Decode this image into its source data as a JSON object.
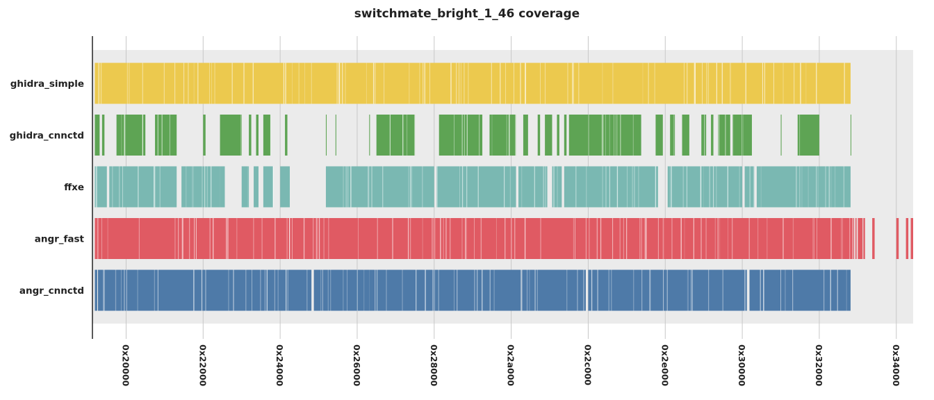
{
  "chart_data": {
    "type": "coverage",
    "title": "switchmate_bright_1_46 coverage",
    "xlabel": "",
    "ylabel": "",
    "x_scale": "hexadecimal address",
    "xlim": [
      "0x1f200",
      "0x34700"
    ],
    "x_ticks": [
      "0x20000",
      "0x22000",
      "0x24000",
      "0x26000",
      "0x28000",
      "0x2a000",
      "0x2c000",
      "0x2e000",
      "0x30000",
      "0x32000",
      "0x34000"
    ],
    "grid": true,
    "series": [
      {
        "name": "ghidra_simple",
        "color": "#ecc94e",
        "blocks": [
          [
            "0x1f300",
            "0x32d00"
          ]
        ]
      },
      {
        "name": "ghidra_cnnctd",
        "color": "#5ea454",
        "blocks": [
          [
            "0x1f300",
            "0x1f500"
          ],
          [
            "0x1f600",
            "0x1f700"
          ],
          [
            "0x1fc00",
            "0x20800"
          ],
          [
            "0x20c00",
            "0x21500"
          ],
          [
            "0x22000",
            "0x22100"
          ],
          [
            "0x22700",
            "0x23000"
          ],
          [
            "0x23300",
            "0x23400"
          ],
          [
            "0x23600",
            "0x23700"
          ],
          [
            "0x23900",
            "0x23c00"
          ],
          [
            "0x24200",
            "0x24300"
          ],
          [
            "0x25300",
            "0x25350"
          ],
          [
            "0x25700",
            "0x25750"
          ],
          [
            "0x26500",
            "0x26550"
          ],
          [
            "0x26800",
            "0x27800"
          ],
          [
            "0x28200",
            "0x29400"
          ],
          [
            "0x29700",
            "0x2a200"
          ],
          [
            "0x2a500",
            "0x2a700"
          ],
          [
            "0x2ab00",
            "0x2ac00"
          ],
          [
            "0x2ae00",
            "0x2b100"
          ],
          [
            "0x2b300",
            "0x2b400"
          ],
          [
            "0x2b600",
            "0x2b700"
          ],
          [
            "0x2b800",
            "0x2c000"
          ],
          [
            "0x2c000",
            "0x2d600"
          ],
          [
            "0x2dc00",
            "0x2df00"
          ],
          [
            "0x2e200",
            "0x2e400"
          ],
          [
            "0x2e700",
            "0x2ea00"
          ],
          [
            "0x2ef00",
            "0x2f100"
          ],
          [
            "0x2f300",
            "0x2f400"
          ],
          [
            "0x2f600",
            "0x2fb00"
          ],
          [
            "0x2fc00",
            "0x30400"
          ],
          [
            "0x31000",
            "0x31050"
          ],
          [
            "0x31700",
            "0x32000"
          ],
          [
            "0x32d00",
            "0x32d40"
          ]
        ]
      },
      {
        "name": "ffxe",
        "color": "#7ab8b2",
        "blocks": [
          [
            "0x1f300",
            "0x1f800"
          ],
          [
            "0x1f900",
            "0x21500"
          ],
          [
            "0x21700",
            "0x22700"
          ],
          [
            "0x22700",
            "0x22900"
          ],
          [
            "0x23000",
            "0x23300"
          ],
          [
            "0x23500",
            "0x23700"
          ],
          [
            "0x23900",
            "0x23d00"
          ],
          [
            "0x24000",
            "0x24400"
          ],
          [
            "0x25300",
            "0x26500"
          ],
          [
            "0x26500",
            "0x28000"
          ],
          [
            "0x28100",
            "0x2a200"
          ],
          [
            "0x2a300",
            "0x2af00"
          ],
          [
            "0x2b100",
            "0x2b500"
          ],
          [
            "0x2b600",
            "0x2dd00"
          ],
          [
            "0x2e100",
            "0x2f000"
          ],
          [
            "0x2f000",
            "0x30000"
          ],
          [
            "0x30100",
            "0x30500"
          ],
          [
            "0x30600",
            "0x32d00"
          ]
        ]
      },
      {
        "name": "angr_fast",
        "color": "#e05a63",
        "blocks": [
          [
            "0x1f300",
            "0x32e00"
          ],
          [
            "0x32e20",
            "0x32e80"
          ],
          [
            "0x32f00",
            "0x32f80"
          ],
          [
            "0x33000",
            "0x33200"
          ],
          [
            "0x33250",
            "0x33300"
          ],
          [
            "0x33600",
            "0x33700"
          ],
          [
            "0x34000",
            "0x34100"
          ],
          [
            "0x34400",
            "0x34500"
          ],
          [
            "0x34600",
            "0x34700"
          ]
        ]
      },
      {
        "name": "angr_cnnctd",
        "color": "#4e7aa8",
        "blocks": [
          [
            "0x1f300",
            "0x1f400"
          ],
          [
            "0x1f450",
            "0x24d00"
          ],
          [
            "0x24e00",
            "0x26500"
          ],
          [
            "0x26500",
            "0x28000"
          ],
          [
            "0x28000",
            "0x2a400"
          ],
          [
            "0x2a450",
            "0x2bf00"
          ],
          [
            "0x2c000",
            "0x2e900"
          ],
          [
            "0x2e900",
            "0x30200"
          ],
          [
            "0x30300",
            "0x32d00"
          ]
        ]
      }
    ]
  }
}
